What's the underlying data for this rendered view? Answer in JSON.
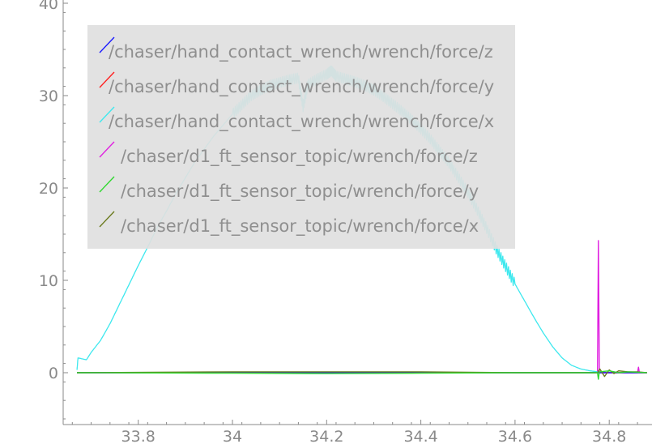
{
  "chart_data": {
    "type": "line",
    "title": "",
    "xlabel": "",
    "ylabel": "",
    "xlim": [
      33.655,
      34.885
    ],
    "ylim": [
      -5.7,
      40
    ],
    "xticks": [
      33.8,
      34.0,
      34.2,
      34.4,
      34.6,
      34.8
    ],
    "xtick_labels": [
      "33.8",
      "34",
      "34.2",
      "34.4",
      "34.6",
      "34.8"
    ],
    "yticks": [
      0,
      10,
      20,
      30,
      40
    ],
    "ytick_labels": [
      "0",
      "10",
      "20",
      "30",
      "40"
    ],
    "grid": false,
    "legend_placement": "top-left, inside plot area",
    "legend_background": "#e0e0e0",
    "series": [
      {
        "name": "/chaser/hand_contact_wrench/wrench/force/z",
        "color": "#1a1aff",
        "x": [
          33.67,
          34.0,
          34.5,
          34.78,
          34.88
        ],
        "y": [
          0,
          0,
          0,
          0,
          0
        ]
      },
      {
        "name": "/chaser/hand_contact_wrench/wrench/force/y",
        "color": "#ff2020",
        "x": [
          33.67,
          34.0,
          34.5,
          34.78,
          34.88
        ],
        "y": [
          0,
          0,
          0,
          0,
          0
        ]
      },
      {
        "name": "/chaser/hand_contact_wrench/wrench/force/x",
        "color": "#3ee8ee",
        "x": [
          33.67,
          33.672,
          33.69,
          33.7,
          33.72,
          33.74,
          33.76,
          33.78,
          33.8,
          33.82,
          33.84,
          33.86,
          33.88,
          33.9,
          33.92,
          33.94,
          33.96,
          33.98,
          34.0,
          34.02,
          34.04,
          34.06,
          34.08,
          34.1,
          34.12,
          34.14,
          34.15,
          34.16,
          34.18,
          34.2,
          34.21,
          34.22,
          34.24,
          34.26,
          34.28,
          34.3,
          34.32,
          34.34,
          34.36,
          34.38,
          34.4,
          34.42,
          34.44,
          34.46,
          34.48,
          34.5,
          34.52,
          34.54,
          34.56,
          34.58,
          34.6,
          34.62,
          34.64,
          34.66,
          34.68,
          34.7,
          34.72,
          34.74,
          34.76,
          34.775
        ],
        "y": [
          0.3,
          1.6,
          1.4,
          2.2,
          3.5,
          5.3,
          7.4,
          9.5,
          11.6,
          13.6,
          15.7,
          17.5,
          19.4,
          21.1,
          22.8,
          24.2,
          25.6,
          26.8,
          28.0,
          29.0,
          30.0,
          30.6,
          31.1,
          31.4,
          31.7,
          31.9,
          28.8,
          31.2,
          31.8,
          32.3,
          32.7,
          32.1,
          31.8,
          31.5,
          31.1,
          30.6,
          29.9,
          29.1,
          28.3,
          27.4,
          26.4,
          25.3,
          24.0,
          22.7,
          21.1,
          19.5,
          17.6,
          15.6,
          13.4,
          11.5,
          9.6,
          7.8,
          6.0,
          4.3,
          2.8,
          1.6,
          0.8,
          0.4,
          0.2,
          0.1
        ]
      },
      {
        "name": "/chaser/d1_ft_sensor_topic/wrench/force/z",
        "color": "#e020e0",
        "x": [
          33.67,
          34.0,
          34.5,
          34.775,
          34.777,
          34.779,
          34.8,
          34.84,
          34.86,
          34.862,
          34.864,
          34.88
        ],
        "y": [
          0,
          0,
          0,
          0,
          14.3,
          0,
          0,
          0,
          0,
          0.6,
          0,
          0
        ]
      },
      {
        "name": "/chaser/d1_ft_sensor_topic/wrench/force/y",
        "color": "#30d830",
        "x": [
          33.67,
          34.0,
          34.2,
          34.4,
          34.6,
          34.775,
          34.777,
          34.779,
          34.8,
          34.82,
          34.84,
          34.88
        ],
        "y": [
          0,
          -0.05,
          -0.1,
          -0.05,
          0,
          0,
          -0.7,
          0.1,
          0.2,
          0,
          0.1,
          0
        ]
      },
      {
        "name": "/chaser/d1_ft_sensor_topic/wrench/force/x",
        "color": "#6b7a1e",
        "x": [
          33.67,
          34.0,
          34.2,
          34.4,
          34.6,
          34.775,
          34.78,
          34.79,
          34.8,
          34.81,
          34.82,
          34.84,
          34.86,
          34.88
        ],
        "y": [
          0,
          0.1,
          0.1,
          0.1,
          0,
          0,
          0.4,
          -0.4,
          0.3,
          -0.1,
          0.2,
          0.1,
          0.1,
          0
        ]
      }
    ]
  }
}
